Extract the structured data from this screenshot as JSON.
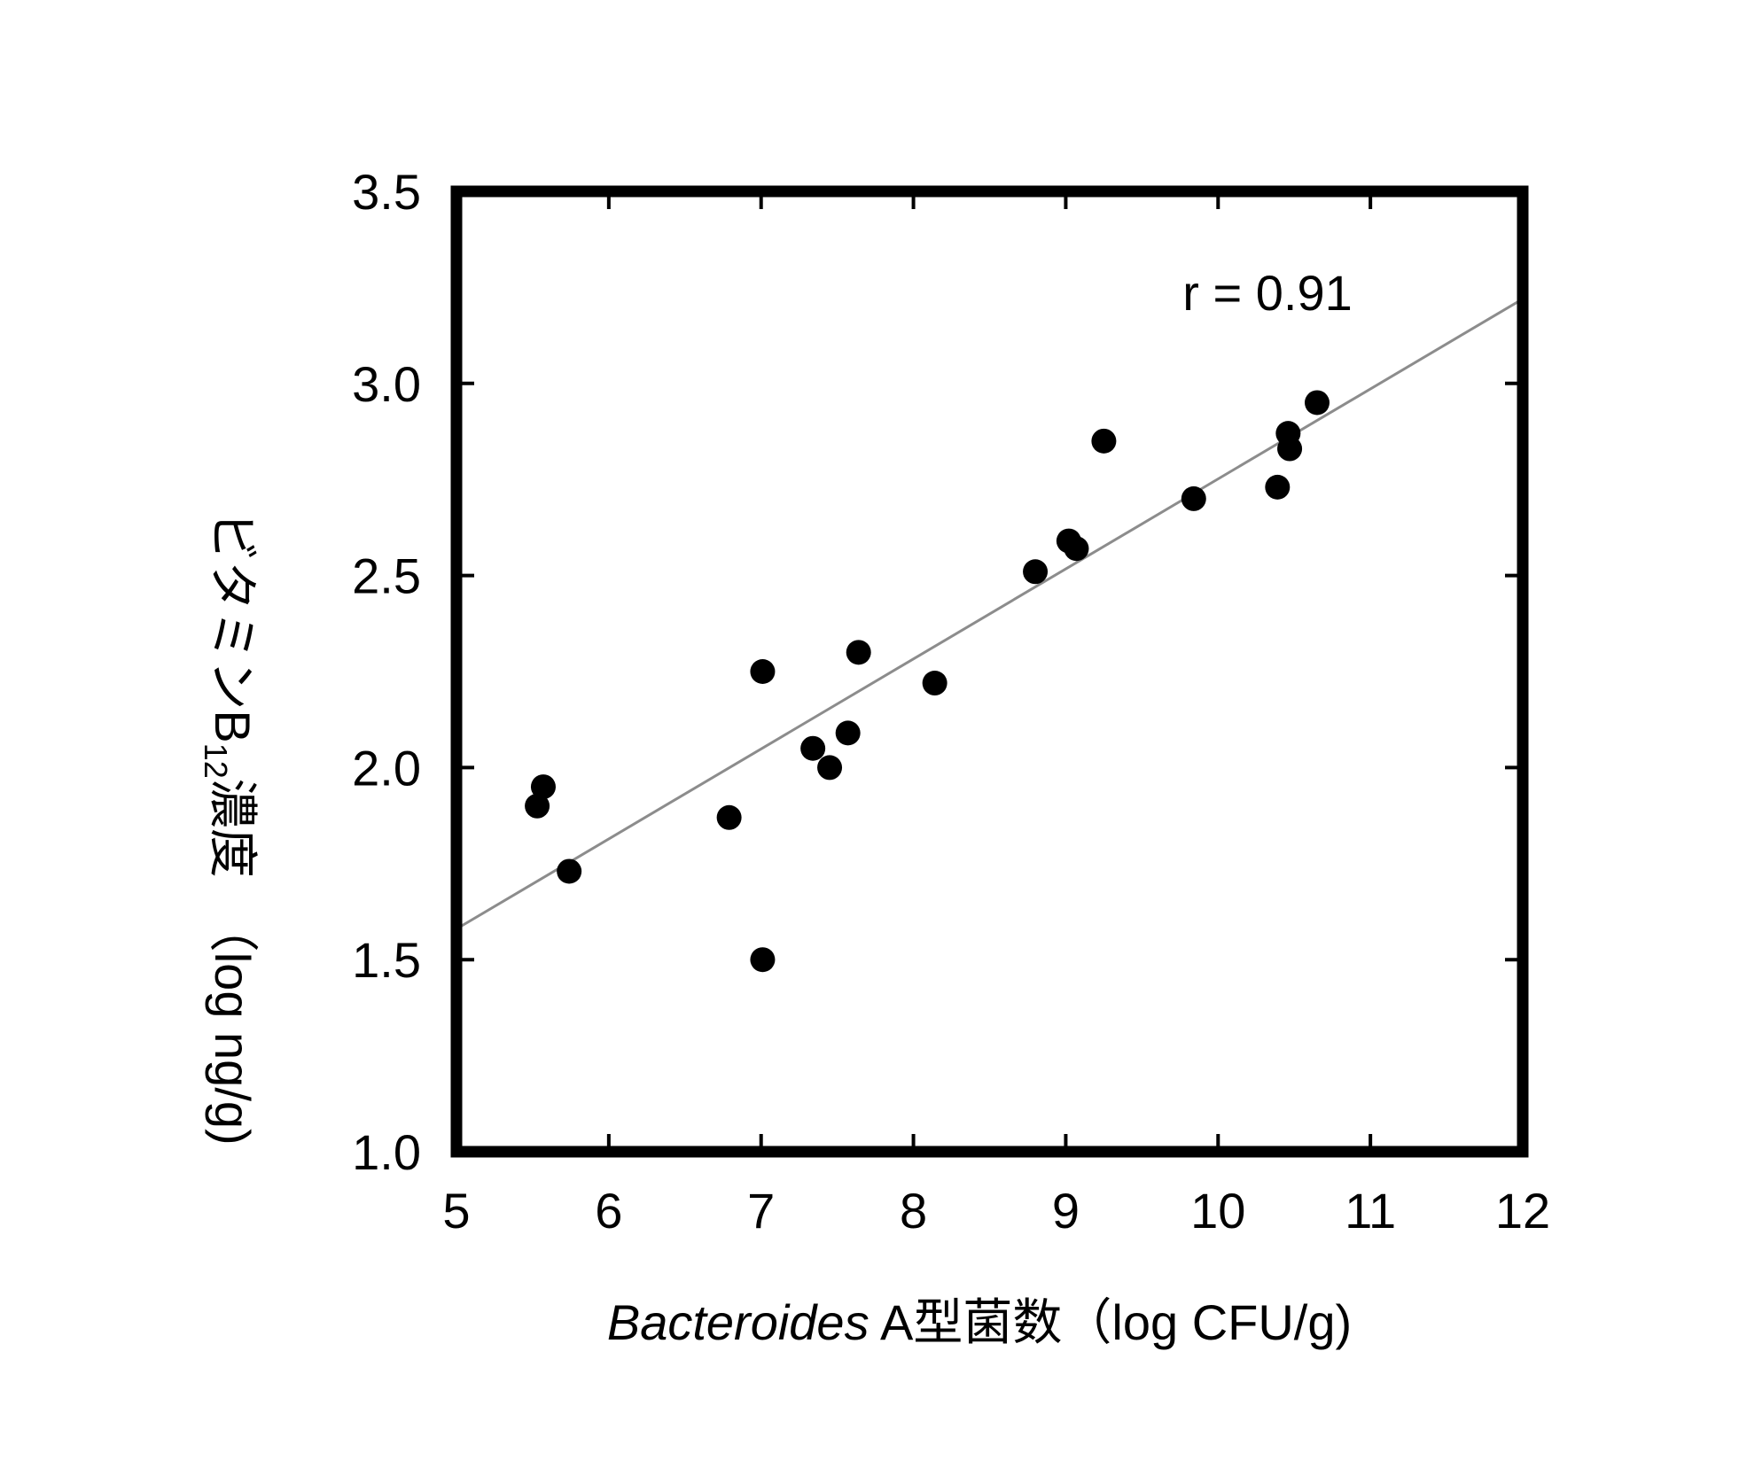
{
  "chart_data": {
    "type": "scatter",
    "title": "",
    "xlabel": {
      "italic_part": "Bacteroides",
      "rest": " A型菌数（log CFU/g)"
    },
    "ylabel": {
      "part1": "ビタミンB",
      "subscript": "12",
      "part2": "濃度　（log ng/g)"
    },
    "xlim": [
      5,
      12
    ],
    "ylim": [
      1.0,
      3.5
    ],
    "x_ticks": [
      "5",
      "6",
      "7",
      "8",
      "9",
      "10",
      "11",
      "12"
    ],
    "y_ticks": [
      "1.0",
      "1.5",
      "2.0",
      "2.5",
      "3.0",
      "3.5"
    ],
    "grid": false,
    "legend": "none",
    "annotation": "r = 0.91",
    "regression_line": {
      "x": [
        5,
        12
      ],
      "y": [
        1.58,
        3.22
      ]
    },
    "points": [
      {
        "x": 5.57,
        "y": 1.95
      },
      {
        "x": 5.53,
        "y": 1.9
      },
      {
        "x": 5.74,
        "y": 1.73
      },
      {
        "x": 6.79,
        "y": 1.87
      },
      {
        "x": 7.01,
        "y": 2.25
      },
      {
        "x": 7.01,
        "y": 1.5
      },
      {
        "x": 7.34,
        "y": 2.05
      },
      {
        "x": 7.45,
        "y": 2.0
      },
      {
        "x": 7.57,
        "y": 2.09
      },
      {
        "x": 7.64,
        "y": 2.3
      },
      {
        "x": 8.14,
        "y": 2.22
      },
      {
        "x": 8.8,
        "y": 2.51
      },
      {
        "x": 9.07,
        "y": 2.57
      },
      {
        "x": 9.02,
        "y": 2.59
      },
      {
        "x": 9.25,
        "y": 2.85
      },
      {
        "x": 9.84,
        "y": 2.7
      },
      {
        "x": 10.39,
        "y": 2.73
      },
      {
        "x": 10.46,
        "y": 2.87
      },
      {
        "x": 10.47,
        "y": 2.83
      },
      {
        "x": 10.65,
        "y": 2.95
      }
    ],
    "colors": {
      "points": "#000000",
      "regression_line": "#8c8c8c",
      "frame": "#000000"
    }
  }
}
